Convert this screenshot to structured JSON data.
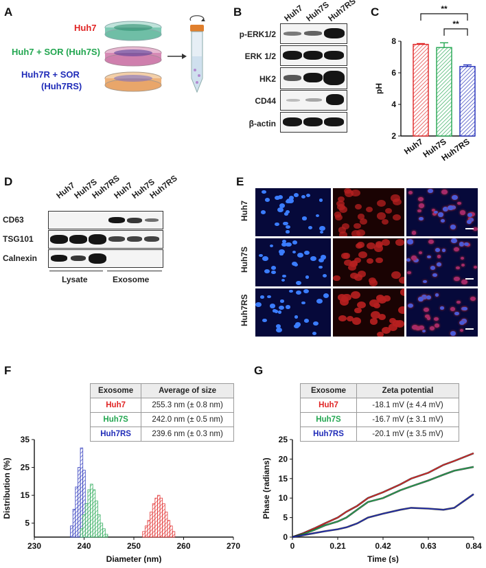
{
  "panels": {
    "A": {
      "letter": "A",
      "labels": [
        {
          "text": "Huh7",
          "color": "#e02424"
        },
        {
          "text": "Huh7 + SOR (Huh7S)",
          "color": "#22a650"
        },
        {
          "text": "Huh7R + SOR",
          "color": "#1f2bb8"
        },
        {
          "text": "(Huh7RS)",
          "color": "#1f2bb8"
        }
      ]
    },
    "B": {
      "letter": "B",
      "lanes": [
        "Huh7",
        "Huh7S",
        "Huh7RS"
      ],
      "rows": [
        "p-ERK1/2",
        "ERK 1/2",
        "HK2",
        "CD44",
        "β-actin"
      ]
    },
    "C": {
      "letter": "C"
    },
    "D": {
      "letter": "D",
      "lanes": [
        "Huh7",
        "Huh7S",
        "Huh7RS",
        "Huh7",
        "Huh7S",
        "Huh7RS"
      ],
      "rows": [
        "CD63",
        "TSG101",
        "Calnexin"
      ],
      "groups": [
        "Lysate",
        "Exosome"
      ]
    },
    "E": {
      "letter": "E",
      "rows": [
        "Huh7",
        "Huh7S",
        "Huh7RS"
      ]
    },
    "F": {
      "letter": "F",
      "table": {
        "headers": [
          "Exosome",
          "Average of size"
        ],
        "rows": [
          {
            "name": "Huh7",
            "value": "255.3 nm (± 0.8 nm)",
            "color": "#e02424"
          },
          {
            "name": "Huh7S",
            "value": "242.0 nm (± 0.5 nm)",
            "color": "#22a650"
          },
          {
            "name": "Huh7RS",
            "value": "239.6 nm (± 0.3 nm)",
            "color": "#1f2bb8"
          }
        ]
      }
    },
    "G": {
      "letter": "G",
      "table": {
        "headers": [
          "Exosome",
          "Zeta potential"
        ],
        "rows": [
          {
            "name": "Huh7",
            "value": "-18.1 mV (± 4.4 mV)",
            "color": "#e02424"
          },
          {
            "name": "Huh7S",
            "value": "-16.7 mV (± 3.1 mV)",
            "color": "#22a650"
          },
          {
            "name": "Huh7RS",
            "value": "-20.1 mV (± 3.5 mV)",
            "color": "#1f2bb8"
          }
        ]
      }
    }
  },
  "chart_data": [
    {
      "type": "bar",
      "panel": "C",
      "categories": [
        "Huh7",
        "Huh7S",
        "Huh7RS"
      ],
      "values": [
        7.8,
        7.6,
        6.4
      ],
      "errors": [
        0.05,
        0.3,
        0.1
      ],
      "colors": [
        "#e02424",
        "#22a650",
        "#1f2bb8"
      ],
      "ylabel": "pH",
      "ylim": [
        2,
        8
      ],
      "yticks": [
        2,
        4,
        6,
        8
      ],
      "significance": [
        {
          "from": 0,
          "to": 2,
          "label": "**"
        },
        {
          "from": 1,
          "to": 2,
          "label": "**"
        }
      ]
    },
    {
      "type": "bar",
      "panel": "F",
      "xlabel": "Diameter (nm)",
      "ylabel": "Distribution (%)",
      "xlim": [
        230,
        270
      ],
      "ylim": [
        0,
        35
      ],
      "xticks": [
        230,
        240,
        250,
        260,
        270
      ],
      "yticks": [
        5,
        15,
        25,
        35
      ],
      "series": [
        {
          "name": "Huh7RS",
          "color": "#1f2bb8",
          "x": [
            237.5,
            238,
            238.5,
            239,
            239.5,
            240,
            240.5,
            241
          ],
          "values": [
            4,
            10,
            18,
            25,
            32,
            24,
            12,
            4
          ]
        },
        {
          "name": "Huh7S",
          "color": "#22a650",
          "x": [
            239.5,
            240,
            240.5,
            241,
            241.5,
            242,
            242.5,
            243,
            243.5,
            244,
            244.5
          ],
          "values": [
            3,
            8,
            12,
            17,
            19,
            17,
            13,
            8,
            5,
            3,
            1
          ]
        },
        {
          "name": "Huh7",
          "color": "#e02424",
          "x": [
            252,
            252.5,
            253,
            253.5,
            254,
            254.5,
            255,
            255.5,
            256,
            256.5,
            257,
            257.5,
            258
          ],
          "values": [
            2,
            4,
            6,
            9,
            12,
            14,
            15,
            14,
            12,
            9,
            6,
            4,
            2
          ]
        }
      ]
    },
    {
      "type": "line",
      "panel": "G",
      "xlabel": "Time (s)",
      "ylabel": "Phase (radians)",
      "xlim": [
        0,
        0.84
      ],
      "ylim": [
        0,
        25
      ],
      "xticks": [
        0,
        0.21,
        0.42,
        0.63,
        0.84
      ],
      "yticks": [
        0,
        5,
        10,
        15,
        20,
        25
      ],
      "series": [
        {
          "name": "Huh7",
          "color": "#e02424",
          "x": [
            0,
            0.05,
            0.1,
            0.15,
            0.21,
            0.25,
            0.3,
            0.35,
            0.42,
            0.5,
            0.55,
            0.63,
            0.7,
            0.75,
            0.84
          ],
          "values": [
            0,
            1,
            2.2,
            3.5,
            5,
            6.5,
            8,
            10,
            11.5,
            13.5,
            15,
            16.5,
            18.5,
            19.5,
            21.5
          ]
        },
        {
          "name": "Huh7S",
          "color": "#22a650",
          "x": [
            0,
            0.05,
            0.1,
            0.15,
            0.21,
            0.25,
            0.3,
            0.35,
            0.42,
            0.5,
            0.55,
            0.63,
            0.7,
            0.75,
            0.84
          ],
          "values": [
            0,
            0.8,
            1.8,
            3,
            4,
            5,
            7,
            9,
            10,
            12,
            13,
            14.5,
            16,
            17,
            18
          ]
        },
        {
          "name": "Huh7RS",
          "color": "#1f2bb8",
          "x": [
            0,
            0.05,
            0.1,
            0.15,
            0.21,
            0.25,
            0.3,
            0.35,
            0.42,
            0.5,
            0.55,
            0.63,
            0.7,
            0.75,
            0.84
          ],
          "values": [
            0,
            0.5,
            1,
            1.5,
            2,
            2.5,
            3.5,
            5,
            6,
            7,
            7.5,
            7.3,
            7,
            7.5,
            11
          ]
        }
      ]
    }
  ]
}
